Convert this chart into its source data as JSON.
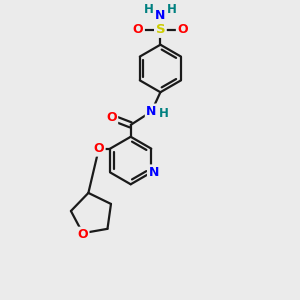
{
  "bg_color": "#ebebeb",
  "bond_color": "#1a1a1a",
  "bond_width": 1.6,
  "atom_colors": {
    "N": "#0000ff",
    "O": "#ff0000",
    "S": "#cccc00",
    "H": "#008080",
    "C": "#1a1a1a"
  },
  "fs": 8.5,
  "figsize": [
    3.0,
    3.0
  ],
  "dpi": 100,
  "xlim": [
    0,
    10
  ],
  "ylim": [
    0,
    10
  ]
}
